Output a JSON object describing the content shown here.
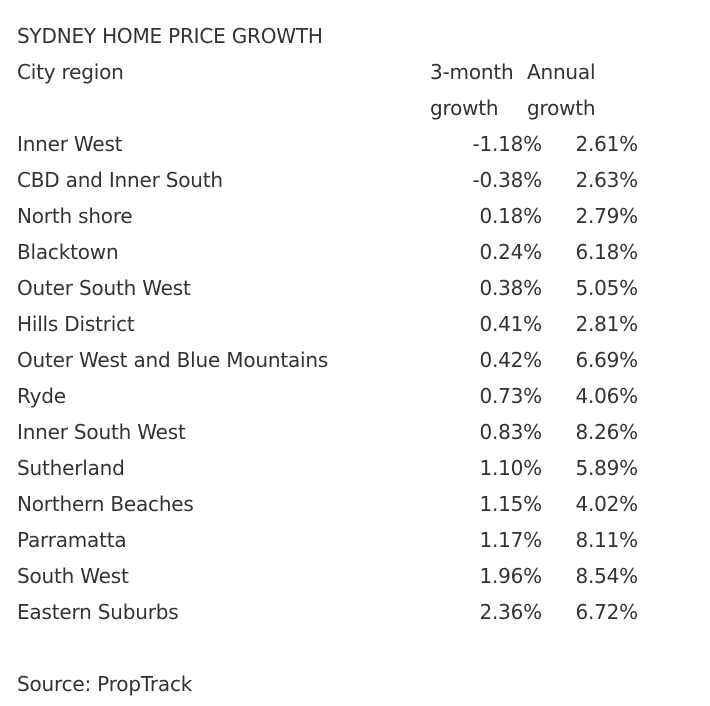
{
  "title": "SYDNEY HOME PRICE GROWTH",
  "columns": {
    "region": "City region",
    "three_month_1": "3-month",
    "three_month_2": "growth",
    "annual_1": "Annual",
    "annual_2": "growth"
  },
  "rows": [
    {
      "region": "Inner West",
      "three_month": "-1.18%",
      "annual": "2.61%"
    },
    {
      "region": "CBD and Inner South",
      "three_month": "-0.38%",
      "annual": "2.63%"
    },
    {
      "region": "North shore",
      "three_month": "0.18%",
      "annual": "2.79%"
    },
    {
      "region": "Blacktown",
      "three_month": "0.24%",
      "annual": "6.18%"
    },
    {
      "region": "Outer South West",
      "three_month": "0.38%",
      "annual": "5.05%"
    },
    {
      "region": "Hills District",
      "three_month": "0.41%",
      "annual": "2.81%"
    },
    {
      "region": "Outer West and Blue Mountains",
      "three_month": "0.42%",
      "annual": "6.69%"
    },
    {
      "region": "Ryde",
      "three_month": "0.73%",
      "annual": "4.06%"
    },
    {
      "region": "Inner South West",
      "three_month": "0.83%",
      "annual": "8.26%"
    },
    {
      "region": "Sutherland",
      "three_month": "1.10%",
      "annual": "5.89%"
    },
    {
      "region": "Northern Beaches",
      "three_month": "1.15%",
      "annual": "4.02%"
    },
    {
      "region": "Parramatta",
      "three_month": "1.17%",
      "annual": "8.11%"
    },
    {
      "region": "South West",
      "three_month": "1.96%",
      "annual": "8.54%"
    },
    {
      "region": "Eastern Suburbs",
      "three_month": "2.36%",
      "annual": "6.72%"
    }
  ],
  "source": "Source: PropTrack"
}
